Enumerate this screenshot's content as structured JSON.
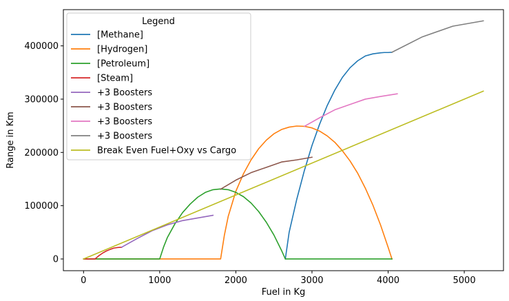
{
  "chart_data": {
    "type": "line",
    "title": "",
    "xlabel": "Fuel in Kg",
    "ylabel": "Range in Km",
    "xlim": [
      -265,
      5515
    ],
    "ylim": [
      -22000,
      468000
    ],
    "xticks": [
      0,
      1000,
      2000,
      3000,
      4000,
      5000
    ],
    "yticks": [
      0,
      100000,
      200000,
      300000,
      400000
    ],
    "xtick_labels": [
      "0",
      "1000",
      "2000",
      "3000",
      "4000",
      "5000"
    ],
    "ytick_labels": [
      "0",
      "100000",
      "200000",
      "300000",
      "400000"
    ],
    "grid": false,
    "legend": {
      "title": "Legend",
      "placement": "top-left"
    },
    "series": [
      {
        "name": "[Methane]",
        "color": "#1f77b4",
        "x": [
          2650,
          2700,
          2800,
          2900,
          3000,
          3100,
          3200,
          3300,
          3400,
          3500,
          3600,
          3700,
          3800,
          3900,
          3950,
          4000,
          4050
        ],
        "y": [
          0,
          50000,
          112000,
          166000,
          213000,
          253000,
          288000,
          317000,
          341000,
          359000,
          372000,
          381000,
          385000,
          387000,
          387500,
          387500,
          388000
        ]
      },
      {
        "name": "[Hydrogen]",
        "color": "#ff7f0e",
        "x": [
          0,
          500,
          1000,
          1500,
          1800,
          1850,
          1900,
          2000,
          2100,
          2200,
          2300,
          2400,
          2500,
          2600,
          2700,
          2800,
          2900,
          3000,
          3100,
          3200,
          3300,
          3400,
          3500,
          3600,
          3700,
          3800,
          3900,
          4000,
          4050
        ],
        "y": [
          0,
          0,
          0,
          0,
          0,
          45000,
          80000,
          127000,
          160000,
          186000,
          207000,
          223000,
          235000,
          243000,
          247500,
          249500,
          249000,
          246000,
          240000,
          231000,
          219000,
          203000,
          184000,
          161000,
          133000,
          101000,
          64000,
          22000,
          0
        ]
      },
      {
        "name": "[Petroleum]",
        "color": "#2ca02c",
        "x": [
          0,
          500,
          1000,
          1050,
          1100,
          1200,
          1300,
          1400,
          1500,
          1600,
          1700,
          1800,
          1900,
          2000,
          2100,
          2200,
          2300,
          2400,
          2500,
          2600,
          2650,
          3000,
          3500,
          4000,
          4050
        ],
        "y": [
          0,
          0,
          0,
          22000,
          40000,
          66000,
          87000,
          103000,
          116000,
          125000,
          130000,
          131500,
          130000,
          125000,
          117000,
          105000,
          89000,
          69000,
          45000,
          16000,
          0,
          0,
          0,
          0,
          0
        ]
      },
      {
        "name": "[Steam]",
        "color": "#d62728",
        "x": [
          0,
          150,
          200,
          250,
          300,
          350,
          400,
          450,
          500
        ],
        "y": [
          0,
          0,
          6000,
          11000,
          15000,
          18000,
          20500,
          21500,
          22000
        ]
      },
      {
        "name": "+3 Boosters",
        "color": "#9467bd",
        "x": [
          500,
          700,
          900,
          1100,
          1300,
          1500,
          1700
        ],
        "y": [
          22000,
          38000,
          53000,
          64000,
          72000,
          77000,
          82000
        ]
      },
      {
        "name": "+3 Boosters",
        "color": "#8c564b",
        "x": [
          1800,
          2000,
          2200,
          2400,
          2600,
          2800,
          3000
        ],
        "y": [
          131000,
          148000,
          162000,
          172000,
          182000,
          186000,
          191000
        ]
      },
      {
        "name": "+3 Boosters",
        "color": "#e377c2",
        "x": [
          2900,
          3100,
          3300,
          3500,
          3700,
          3900,
          4120
        ],
        "y": [
          249000,
          265000,
          280000,
          290000,
          300000,
          305000,
          310000
        ]
      },
      {
        "name": "+3 Boosters",
        "color": "#7f7f7f",
        "x": [
          4050,
          4450,
          4850,
          5250
        ],
        "y": [
          388000,
          417000,
          437000,
          447000
        ]
      },
      {
        "name": "Break Even Fuel+Oxy vs Cargo",
        "color": "#bcbd22",
        "x": [
          0,
          5250
        ],
        "y": [
          0,
          315000
        ]
      }
    ]
  }
}
